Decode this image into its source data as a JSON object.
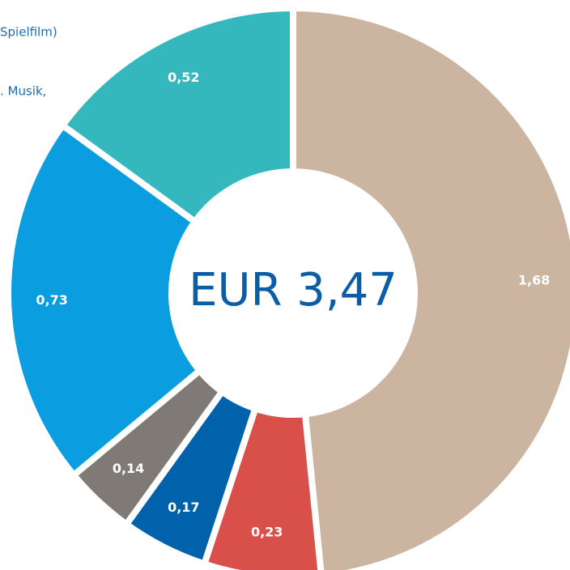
{
  "chart_data": {
    "type": "donut",
    "center_label": "EUR 3,47",
    "annotations": [
      "Spielfilm)",
      ". Musik,"
    ],
    "values": [
      1.68,
      0.23,
      0.17,
      0.14,
      0.73,
      0.52
    ],
    "value_labels": [
      "1,68",
      "0,23",
      "0,17",
      "0,14",
      "0,73",
      "0,52"
    ],
    "colors": [
      "#cbb5a1",
      "#d9504a",
      "#0062ab",
      "#7f7a76",
      "#0a9de0",
      "#35b8bd"
    ]
  }
}
